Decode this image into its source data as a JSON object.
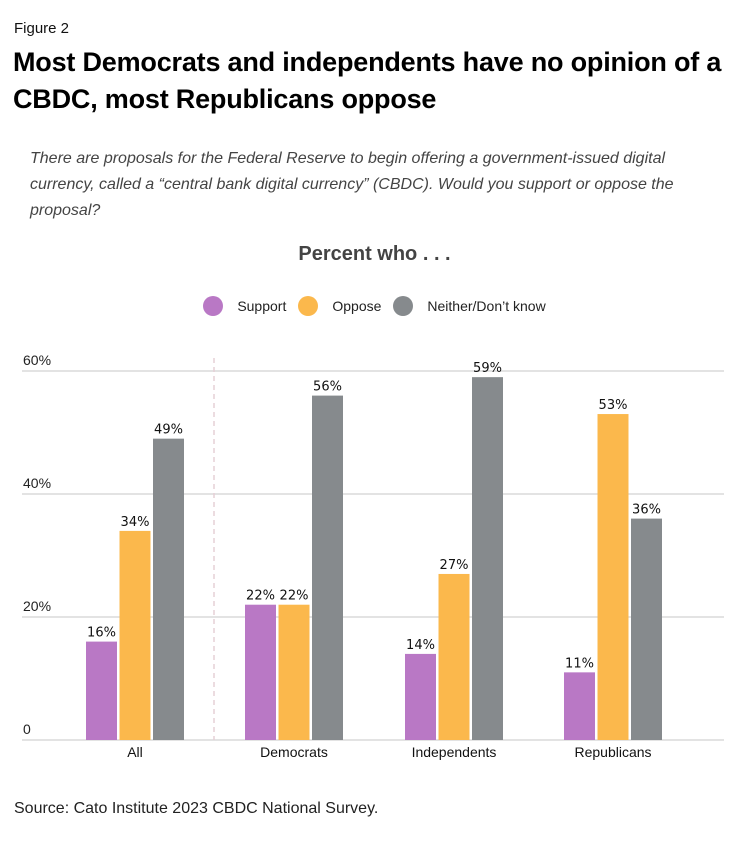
{
  "figure_label": "Figure 2",
  "title": "Most Democrats and independents have no opinion of a CBDC, most Republicans oppose",
  "question": "There are proposals for the Federal Reserve to begin offering a government-issued digital currency, called a “central bank digital currency” (CBDC). Would you support or oppose the proposal?",
  "source": "Source: Cato Institute 2023 CBDC National Survey.",
  "chart_data": {
    "type": "bar",
    "title": "Percent who . . .",
    "xlabel": "",
    "ylabel": "",
    "ylim": [
      0,
      60
    ],
    "yticks": [
      0,
      20,
      40,
      60
    ],
    "ytick_labels": [
      "0",
      "20%",
      "40%",
      "60%"
    ],
    "grid": true,
    "legend_position": "top-center",
    "categories": [
      "All",
      "Democrats",
      "Independents",
      "Republicans"
    ],
    "series": [
      {
        "name": "Support",
        "color": "#b978c5",
        "values": [
          16,
          22,
          14,
          11
        ]
      },
      {
        "name": "Oppose",
        "color": "#fbb84c",
        "values": [
          34,
          22,
          27,
          53
        ]
      },
      {
        "name": "Neither/Don’t know",
        "color": "#868a8d",
        "values": [
          49,
          56,
          59,
          36
        ]
      }
    ],
    "value_suffix": "%",
    "annotations": [
      "dashed divider between All and party groups"
    ]
  }
}
